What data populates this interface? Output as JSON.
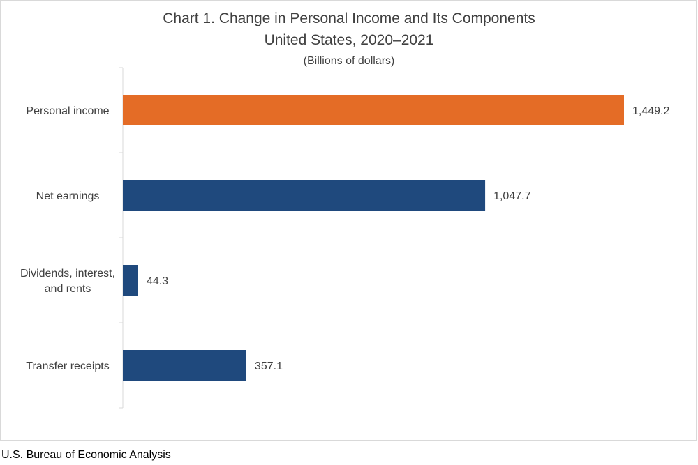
{
  "chart_data": {
    "type": "bar",
    "orientation": "horizontal",
    "title": "Chart 1. Change in Personal Income and Its Components",
    "subtitle": "United States, 2020–2021",
    "unit_label": "(Billions of dollars)",
    "categories": [
      "Personal income",
      "Net earnings",
      "Dividends, interest, and rents",
      "Transfer receipts"
    ],
    "category_lines": [
      [
        "Personal income"
      ],
      [
        "Net earnings"
      ],
      [
        "Dividends, interest,",
        "and rents"
      ],
      [
        "Transfer receipts"
      ]
    ],
    "values": [
      1449.2,
      1047.7,
      44.3,
      357.1
    ],
    "data_labels": [
      "1,449.2",
      "1,047.7",
      "44.3",
      "357.1"
    ],
    "colors": [
      "#E46C26",
      "#1F497D",
      "#1F497D",
      "#1F497D"
    ],
    "xlim": [
      0,
      1449.2
    ],
    "grid": false,
    "legend": "none"
  },
  "source": "U.S. Bureau of Economic Analysis"
}
